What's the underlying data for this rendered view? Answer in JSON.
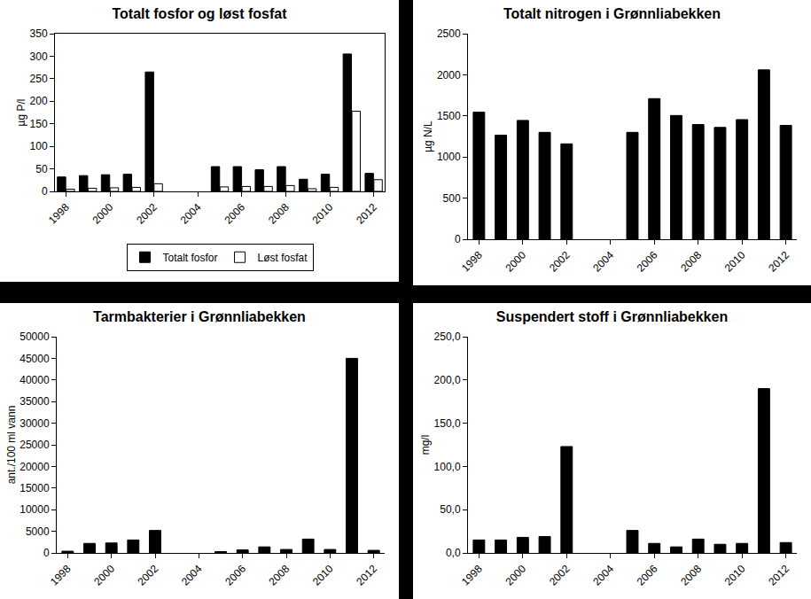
{
  "chart_data": [
    {
      "type": "bar",
      "title": "Totalt fosfor og løst fosfat",
      "y_label": "µg P/l",
      "x": [
        1998,
        1999,
        2000,
        2001,
        2002,
        2003,
        2004,
        2005,
        2006,
        2007,
        2008,
        2009,
        2010,
        2011,
        2012
      ],
      "xlim": [
        1997.5,
        2012.5
      ],
      "xticks": [
        1998,
        2000,
        2002,
        2004,
        2006,
        2008,
        2010,
        2012
      ],
      "series": [
        {
          "name": "Totalt fosfor",
          "color": "#000000",
          "values": [
            32,
            35,
            37,
            38,
            265,
            null,
            null,
            55,
            55,
            48,
            55,
            27,
            38,
            305,
            40
          ]
        },
        {
          "name": "Løst fosfat",
          "color": "#ffffff",
          "values": [
            5,
            7,
            8,
            9,
            17,
            null,
            null,
            10,
            11,
            11,
            13,
            6,
            9,
            178,
            26
          ]
        }
      ],
      "ylim": [
        0,
        350
      ],
      "yticks": [
        0,
        50,
        100,
        150,
        200,
        250,
        300,
        350
      ],
      "grid": false,
      "legend": "bottom"
    },
    {
      "type": "bar",
      "title": "Totalt nitrogen i Grønnliabekken",
      "y_label": "µg N/L",
      "x": [
        1998,
        1999,
        2000,
        2001,
        2002,
        2003,
        2004,
        2005,
        2006,
        2007,
        2008,
        2009,
        2010,
        2011,
        2012
      ],
      "xlim": [
        1997.5,
        2012.5
      ],
      "xticks": [
        1998,
        2000,
        2002,
        2004,
        2006,
        2008,
        2010,
        2012
      ],
      "values": [
        1545,
        1265,
        1445,
        1300,
        1160,
        null,
        null,
        1300,
        1710,
        1505,
        1395,
        1360,
        1455,
        2060,
        1385
      ],
      "color": "#000000",
      "ylim": [
        0,
        2500
      ],
      "yticks": [
        0,
        500,
        1000,
        1500,
        2000,
        2500
      ],
      "grid": false
    },
    {
      "type": "bar",
      "title": "Tarmbakterier i Grønnliabekken",
      "y_label": "ant./100 ml vann",
      "x": [
        1998,
        1999,
        2000,
        2001,
        2002,
        2003,
        2004,
        2005,
        2006,
        2007,
        2008,
        2009,
        2010,
        2011,
        2012
      ],
      "xlim": [
        1997.5,
        2012.5
      ],
      "xticks": [
        1998,
        2000,
        2002,
        2004,
        2006,
        2008,
        2010,
        2012
      ],
      "values": [
        400,
        2200,
        2300,
        3000,
        5200,
        null,
        null,
        300,
        700,
        1400,
        800,
        3200,
        800,
        45000,
        600
      ],
      "color": "#000000",
      "ylim": [
        0,
        50000
      ],
      "yticks": [
        0,
        5000,
        10000,
        15000,
        20000,
        25000,
        30000,
        35000,
        40000,
        45000,
        50000
      ],
      "grid": false
    },
    {
      "type": "bar",
      "title": "Suspendert stoff i Grønnliabekken",
      "y_label": "mg/l",
      "x": [
        1998,
        1999,
        2000,
        2001,
        2002,
        2003,
        2004,
        2005,
        2006,
        2007,
        2008,
        2009,
        2010,
        2011,
        2012
      ],
      "xlim": [
        1997.5,
        2012.5
      ],
      "xticks": [
        1998,
        2000,
        2002,
        2004,
        2006,
        2008,
        2010,
        2012
      ],
      "values": [
        15,
        15,
        18,
        19,
        123,
        null,
        null,
        26,
        11,
        7,
        16,
        10,
        11,
        190,
        12
      ],
      "color": "#000000",
      "ylim": [
        0,
        250
      ],
      "yticks": [
        {
          "value": 0,
          "label": "0,0"
        },
        {
          "value": 50,
          "label": "50,0"
        },
        {
          "value": 100,
          "label": "100,0"
        },
        {
          "value": 150,
          "label": "150,0"
        },
        {
          "value": 200,
          "label": "200,0"
        },
        {
          "value": 250,
          "label": "250,0"
        }
      ],
      "grid": false
    }
  ]
}
